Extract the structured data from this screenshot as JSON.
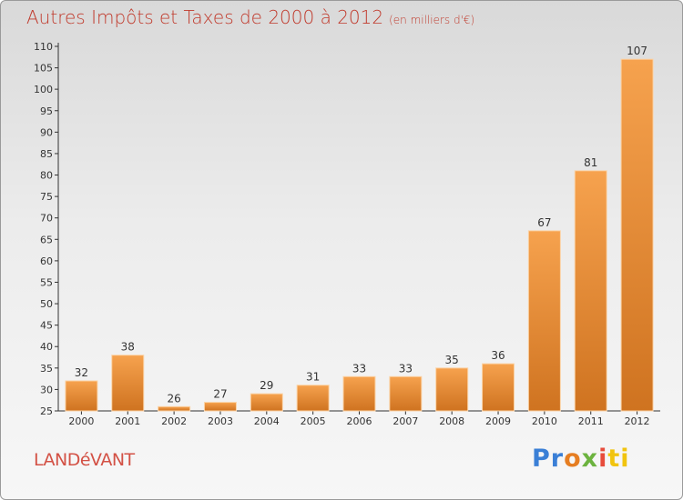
{
  "title": "Autres Impôts et Taxes de 2000 à 2012",
  "title_unit": "(en milliers d'€)",
  "commune": "LANDéVANT",
  "brand": {
    "p1": "Pr",
    "p2": "o",
    "p3": "x",
    "p4": "i",
    "p5": "ti"
  },
  "colors": {
    "bar_light": "#f6a24e",
    "bar_dark": "#cf7320",
    "title": "#c0392b"
  },
  "chart_data": {
    "type": "bar",
    "categories": [
      "2000",
      "2001",
      "2002",
      "2003",
      "2004",
      "2005",
      "2006",
      "2007",
      "2008",
      "2009",
      "2010",
      "2011",
      "2012"
    ],
    "values": [
      32,
      38,
      26,
      27,
      29,
      31,
      33,
      33,
      35,
      36,
      67,
      81,
      107
    ],
    "ylim": [
      25,
      110
    ],
    "yticks": [
      25,
      30,
      35,
      40,
      45,
      50,
      55,
      60,
      65,
      70,
      75,
      80,
      85,
      90,
      95,
      100,
      105,
      110
    ],
    "grid": false
  }
}
